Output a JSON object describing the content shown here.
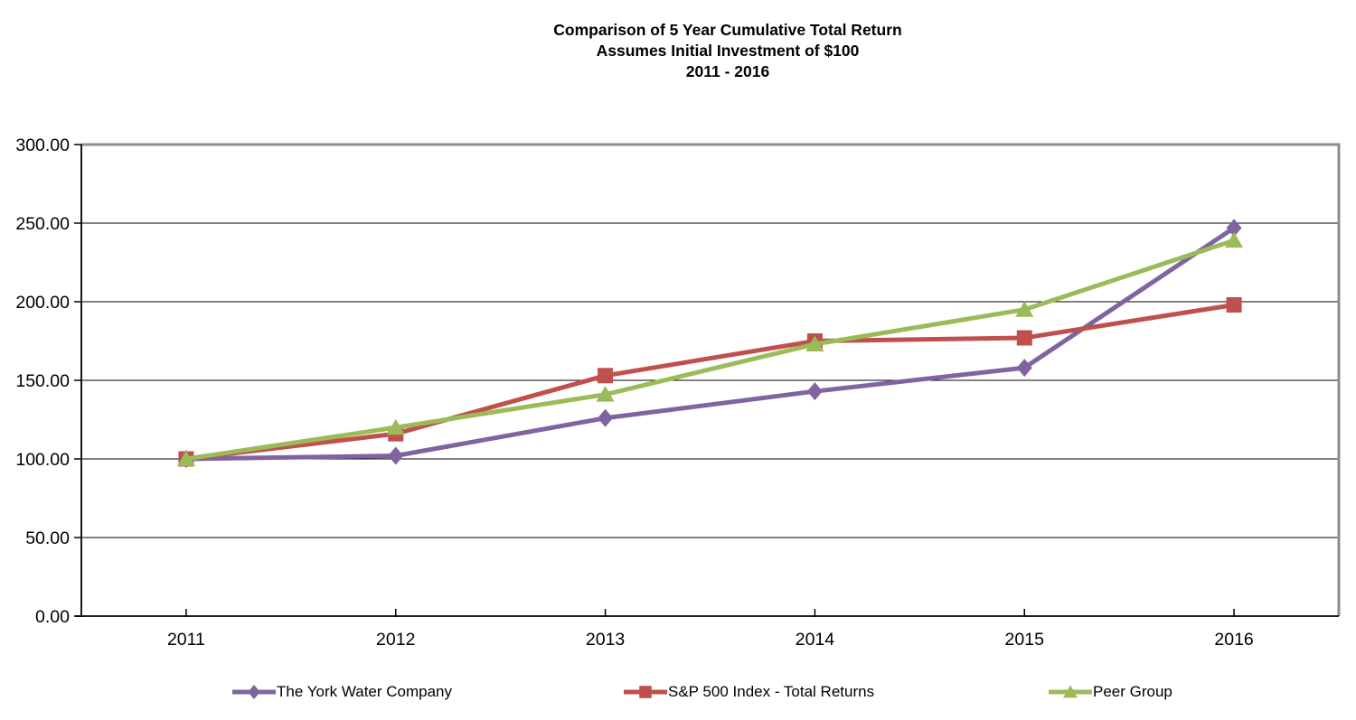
{
  "chart_data": {
    "type": "line",
    "title_lines": [
      "Comparison of 5 Year Cumulative Total Return",
      "Assumes Initial Investment of $100",
      "2011 - 2016"
    ],
    "categories": [
      "2011",
      "2012",
      "2013",
      "2014",
      "2015",
      "2016"
    ],
    "series": [
      {
        "name": "The York Water Company",
        "color": "#8064A2",
        "marker": "diamond",
        "values": [
          100,
          102,
          126,
          143,
          158,
          247
        ]
      },
      {
        "name": "S&P 500 Index - Total Returns",
        "color": "#C0504D",
        "marker": "square",
        "values": [
          100,
          116,
          153,
          175,
          177,
          198
        ]
      },
      {
        "name": "Peer Group",
        "color": "#9BBB59",
        "marker": "triangle",
        "values": [
          100,
          120,
          141,
          173,
          195,
          239
        ]
      }
    ],
    "ylim": [
      0,
      300
    ],
    "y_tick_step": 50,
    "y_tick_labels": [
      "0.00",
      "50.00",
      "100.00",
      "150.00",
      "200.00",
      "250.00",
      "300.00"
    ],
    "grid": true,
    "legend_position": "bottom",
    "colors": {
      "axis": "#000000",
      "gridline": "#000000",
      "plot_border": "#8C8C8C",
      "text": "#000000",
      "background": "#FFFFFF"
    }
  }
}
